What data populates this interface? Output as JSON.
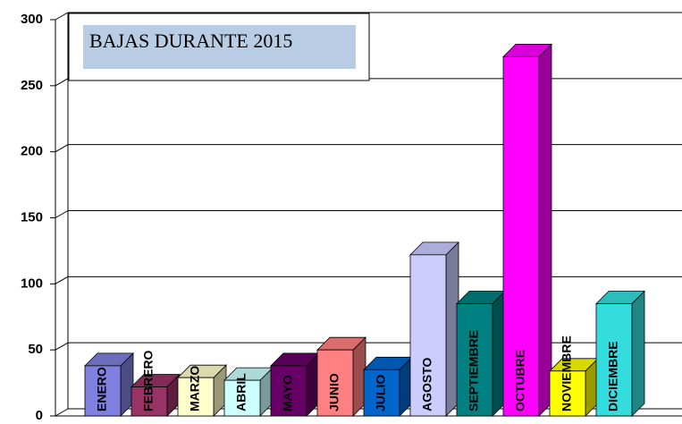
{
  "chart_data": {
    "type": "bar",
    "title": "BAJAS DURANTE 2015",
    "categories": [
      "ENERO",
      "FEBRERO",
      "MARZO",
      "ABRIL",
      "MAYO",
      "JUNIO",
      "JULIO",
      "AGOSTO",
      "SEPTIEMBRE",
      "OCTUBRE",
      "NOVIEMBRE",
      "DICIEMBRE"
    ],
    "values": [
      38,
      22,
      29,
      27,
      38,
      50,
      35,
      122,
      85,
      272,
      34,
      85
    ],
    "colors": [
      "#8080e0",
      "#993366",
      "#ffffcc",
      "#ccffff",
      "#660066",
      "#ff8080",
      "#0066cc",
      "#ccccff",
      "#008080",
      "#ff00ff",
      "#ffff00",
      "#33dddd"
    ],
    "ylim": [
      0,
      300
    ],
    "yticks": [
      0,
      50,
      100,
      150,
      200,
      250,
      300
    ],
    "grid": true
  }
}
